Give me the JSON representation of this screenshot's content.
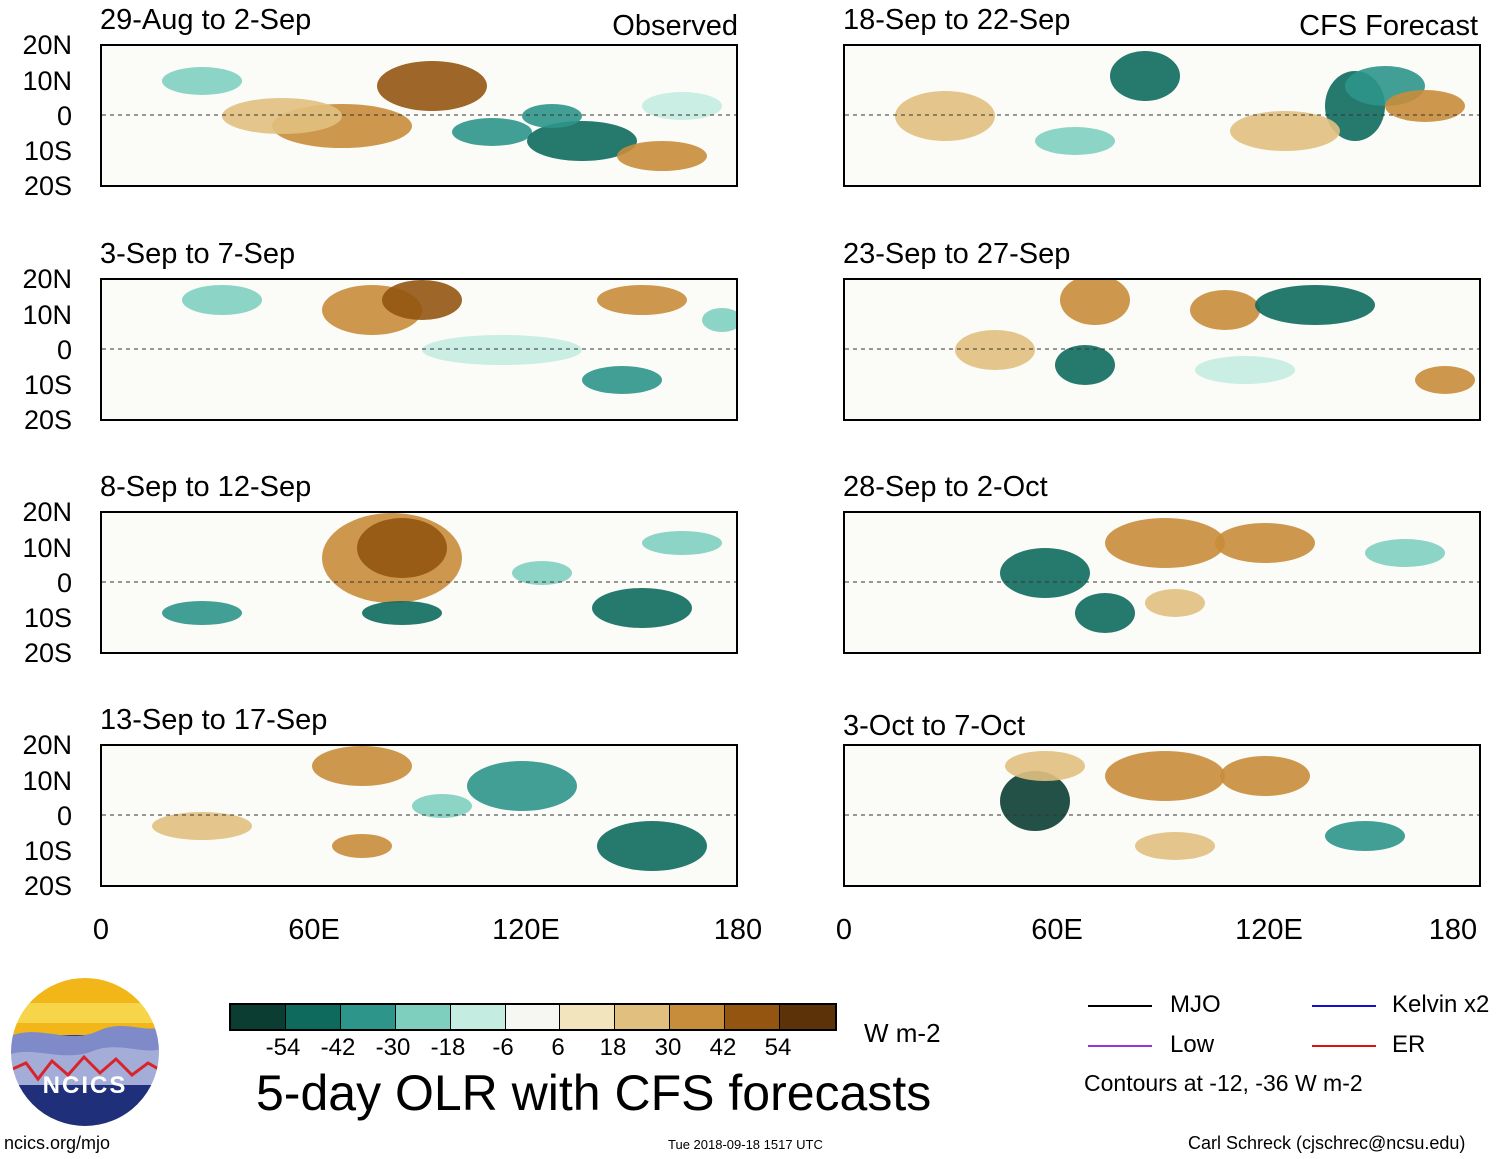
{
  "observed_tag": "Observed",
  "forecast_tag": "CFS Forecast",
  "observed_panels": [
    {
      "title": "29-Aug to 2-Sep"
    },
    {
      "title": "3-Sep to 7-Sep"
    },
    {
      "title": "8-Sep to 12-Sep"
    },
    {
      "title": "13-Sep to 17-Sep"
    }
  ],
  "forecast_panels": [
    {
      "title": "18-Sep to 22-Sep"
    },
    {
      "title": "23-Sep to 27-Sep"
    },
    {
      "title": "28-Sep to 2-Oct"
    },
    {
      "title": "3-Oct to 7-Oct"
    }
  ],
  "y_ticks": [
    "20N",
    "10N",
    "0",
    "10S",
    "20S"
  ],
  "x_ticks": [
    "0",
    "60E",
    "120E",
    "180"
  ],
  "colorbar": {
    "labels": [
      "-54",
      "-42",
      "-30",
      "-18",
      "-6",
      "6",
      "18",
      "30",
      "42",
      "54"
    ],
    "colors": [
      "#0b3d33",
      "#0e6a5d",
      "#2d958a",
      "#7fcfbf",
      "#c4ece0",
      "#f6f6f2",
      "#f2e4bd",
      "#e1c07f",
      "#c88d3a",
      "#945511",
      "#5c3208"
    ],
    "units": "W m-2"
  },
  "legend": {
    "items": [
      {
        "label": "MJO",
        "color": "#000000"
      },
      {
        "label": "Kelvin x2",
        "color": "#1111cc"
      },
      {
        "label": "Low",
        "color": "#9933dd"
      },
      {
        "label": "ER",
        "color": "#dd1111"
      }
    ],
    "note": "Contours at -12, -36 W m-2"
  },
  "main_title": "5-day OLR with CFS forecasts",
  "logo_text": "NCICS",
  "footer": {
    "left": "ncics.org/mjo",
    "center": "Tue 2018-09-18 1517 UTC",
    "right": "Carl Schreck (cjschrec@ncsu.edu)"
  }
}
